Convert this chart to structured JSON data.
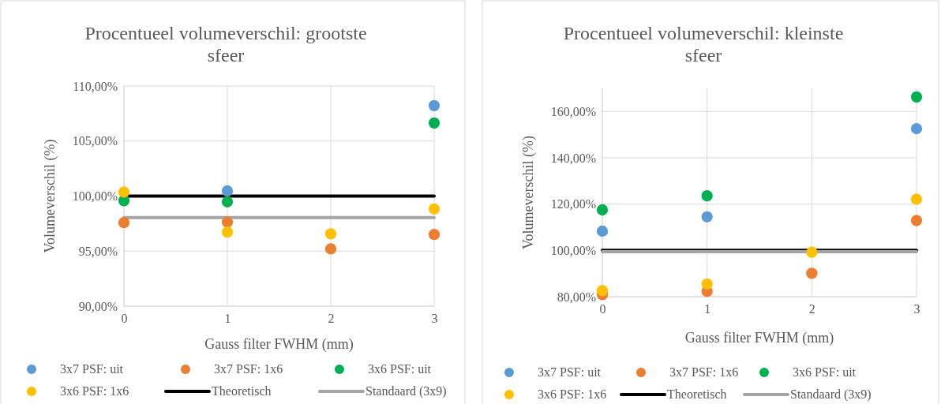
{
  "chart_data": [
    {
      "type": "scatter",
      "title": "Procentueel volumeverschil: grootste sfeer",
      "xlabel": "Gauss filter FWHM (mm)",
      "ylabel": "Volumeverschil (%)",
      "x": [
        0,
        1,
        2,
        3
      ],
      "xlim": [
        0,
        3
      ],
      "xticks": [
        0,
        1,
        2,
        3
      ],
      "ylim": [
        90,
        110
      ],
      "yticks": [
        {
          "value": 90,
          "label": "90,00%"
        },
        {
          "value": 95,
          "label": "95,00%"
        },
        {
          "value": 100,
          "label": "100,00%"
        },
        {
          "value": 105,
          "label": "105,00%"
        },
        {
          "value": 110,
          "label": "110,00%"
        }
      ],
      "grid": true,
      "legend": "bottom",
      "marker": "circle",
      "series": [
        {
          "name": "3x7 PSF: uit",
          "color": "#5b9bd5",
          "values": [
            null,
            100.47,
            null,
            108.22
          ]
        },
        {
          "name": "3x7 PSF: 1x6",
          "color": "#ed7d31",
          "values": [
            97.59,
            97.64,
            95.2,
            96.51
          ]
        },
        {
          "name": "3x6 PSF: uit",
          "color": "#00b050",
          "values": [
            99.58,
            99.48,
            null,
            106.64
          ]
        },
        {
          "name": "3x6 PSF: 1x6",
          "color": "#ffc000",
          "values": [
            100.36,
            96.73,
            96.57,
            98.83
          ]
        },
        {
          "name": "Theoretisch",
          "color": "#000000",
          "type": "line",
          "marker": "none",
          "values": [
            100,
            100,
            100,
            100
          ]
        },
        {
          "name": "Standaard (3x9)",
          "color": "#a5a5a5",
          "type": "line",
          "marker": "none",
          "values": [
            98.05,
            98.05,
            98.05,
            98.05
          ]
        }
      ]
    },
    {
      "type": "scatter",
      "title": "Procentueel volumeverschil: kleinste sfeer",
      "xlabel": "Gauss filter FWHM (mm)",
      "ylabel": "Volumeverschil (%)",
      "x": [
        0,
        1,
        2,
        3
      ],
      "xlim": [
        0,
        3
      ],
      "xticks": [
        0,
        1,
        2,
        3
      ],
      "ylim": [
        80,
        170
      ],
      "yticks": [
        {
          "value": 80,
          "label": "80,00%"
        },
        {
          "value": 100,
          "label": "100,00%"
        },
        {
          "value": 120,
          "label": "120,00%"
        },
        {
          "value": 140,
          "label": "140,00%"
        },
        {
          "value": 160,
          "label": "160,00%"
        }
      ],
      "grid": true,
      "legend": "bottom",
      "marker": "circle",
      "series": [
        {
          "name": "3x7 PSF: uit",
          "color": "#5b9bd5",
          "values": [
            108.3,
            114.5,
            null,
            152.6
          ]
        },
        {
          "name": "3x7 PSF: 1x6",
          "color": "#ed7d31",
          "values": [
            80.9,
            82.3,
            90.1,
            112.9
          ]
        },
        {
          "name": "3x6 PSF: uit",
          "color": "#00b050",
          "values": [
            117.5,
            123.6,
            null,
            166.3
          ]
        },
        {
          "name": "3x6 PSF: 1x6",
          "color": "#ffc000",
          "values": [
            82.6,
            85.5,
            99.2,
            122.1
          ]
        },
        {
          "name": "Theoretisch",
          "color": "#000000",
          "type": "line",
          "marker": "none",
          "values": [
            100,
            100,
            100,
            100
          ]
        },
        {
          "name": "Standaard (3x9)",
          "color": "#a5a5a5",
          "type": "line",
          "marker": "none",
          "values": [
            99.4,
            99.4,
            99.4,
            99.4
          ]
        }
      ]
    }
  ]
}
